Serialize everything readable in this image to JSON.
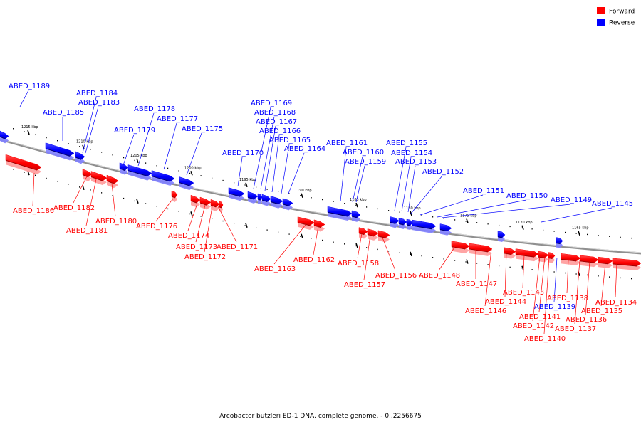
{
  "caption": "Arcobacter butzleri ED-1 DNA, complete genome. - 0..2256675",
  "legend": [
    {
      "label": "Forward",
      "color": "#ff0000"
    },
    {
      "label": "Reverse",
      "color": "#0000ff"
    }
  ],
  "colors": {
    "forward": "#ff0000",
    "reverse": "#0000ff",
    "backbone": "#808080"
  },
  "ticks": [
    {
      "label": "1215 kbp"
    },
    {
      "label": "1210 kbp"
    },
    {
      "label": "1205 kbp"
    },
    {
      "label": "1200 kbp"
    },
    {
      "label": "1195 kbp"
    },
    {
      "label": "1190 kbp"
    },
    {
      "label": "1185 kbp"
    },
    {
      "label": "1180 kbp"
    },
    {
      "label": "1175 kbp"
    },
    {
      "label": "1170 kbp"
    },
    {
      "label": "1165 kbp"
    }
  ],
  "genes": [
    {
      "name": "ABED_1189",
      "strand": "reverse"
    },
    {
      "name": "ABED_1186",
      "strand": "forward"
    },
    {
      "name": "ABED_1185",
      "strand": "reverse"
    },
    {
      "name": "ABED_1184",
      "strand": "reverse"
    },
    {
      "name": "ABED_1183",
      "strand": "reverse"
    },
    {
      "name": "ABED_1182",
      "strand": "forward"
    },
    {
      "name": "ABED_1181",
      "strand": "forward"
    },
    {
      "name": "ABED_1180",
      "strand": "forward"
    },
    {
      "name": "ABED_1179",
      "strand": "reverse"
    },
    {
      "name": "ABED_1178",
      "strand": "reverse"
    },
    {
      "name": "ABED_1177",
      "strand": "reverse"
    },
    {
      "name": "ABED_1176",
      "strand": "forward"
    },
    {
      "name": "ABED_1175",
      "strand": "reverse"
    },
    {
      "name": "ABED_1174",
      "strand": "forward"
    },
    {
      "name": "ABED_1173",
      "strand": "forward"
    },
    {
      "name": "ABED_1172",
      "strand": "forward"
    },
    {
      "name": "ABED_1171",
      "strand": "forward"
    },
    {
      "name": "ABED_1170",
      "strand": "reverse"
    },
    {
      "name": "ABED_1169",
      "strand": "reverse"
    },
    {
      "name": "ABED_1168",
      "strand": "reverse"
    },
    {
      "name": "ABED_1167",
      "strand": "reverse"
    },
    {
      "name": "ABED_1166",
      "strand": "reverse"
    },
    {
      "name": "ABED_1165",
      "strand": "reverse"
    },
    {
      "name": "ABED_1164",
      "strand": "reverse"
    },
    {
      "name": "ABED_1163",
      "strand": "forward"
    },
    {
      "name": "ABED_1162",
      "strand": "forward"
    },
    {
      "name": "ABED_1161",
      "strand": "reverse"
    },
    {
      "name": "ABED_1160",
      "strand": "reverse"
    },
    {
      "name": "ABED_1159",
      "strand": "reverse"
    },
    {
      "name": "ABED_1158",
      "strand": "forward"
    },
    {
      "name": "ABED_1157",
      "strand": "forward"
    },
    {
      "name": "ABED_1156",
      "strand": "forward"
    },
    {
      "name": "ABED_1155",
      "strand": "reverse"
    },
    {
      "name": "ABED_1154",
      "strand": "reverse"
    },
    {
      "name": "ABED_1153",
      "strand": "reverse"
    },
    {
      "name": "ABED_1152",
      "strand": "reverse"
    },
    {
      "name": "ABED_1151",
      "strand": "reverse"
    },
    {
      "name": "ABED_1150",
      "strand": "reverse"
    },
    {
      "name": "ABED_1149",
      "strand": "reverse"
    },
    {
      "name": "ABED_1148",
      "strand": "forward"
    },
    {
      "name": "ABED_1147",
      "strand": "forward"
    },
    {
      "name": "ABED_1146",
      "strand": "forward"
    },
    {
      "name": "ABED_1145",
      "strand": "reverse"
    },
    {
      "name": "ABED_1144",
      "strand": "forward"
    },
    {
      "name": "ABED_1143",
      "strand": "forward"
    },
    {
      "name": "ABED_1142",
      "strand": "forward"
    },
    {
      "name": "ABED_1141",
      "strand": "forward"
    },
    {
      "name": "ABED_1140",
      "strand": "forward"
    },
    {
      "name": "ABED_1139",
      "strand": "reverse"
    },
    {
      "name": "ABED_1138",
      "strand": "forward"
    },
    {
      "name": "ABED_1137",
      "strand": "forward"
    },
    {
      "name": "ABED_1136",
      "strand": "forward"
    },
    {
      "name": "ABED_1135",
      "strand": "forward"
    },
    {
      "name": "ABED_1134",
      "strand": "forward"
    }
  ]
}
